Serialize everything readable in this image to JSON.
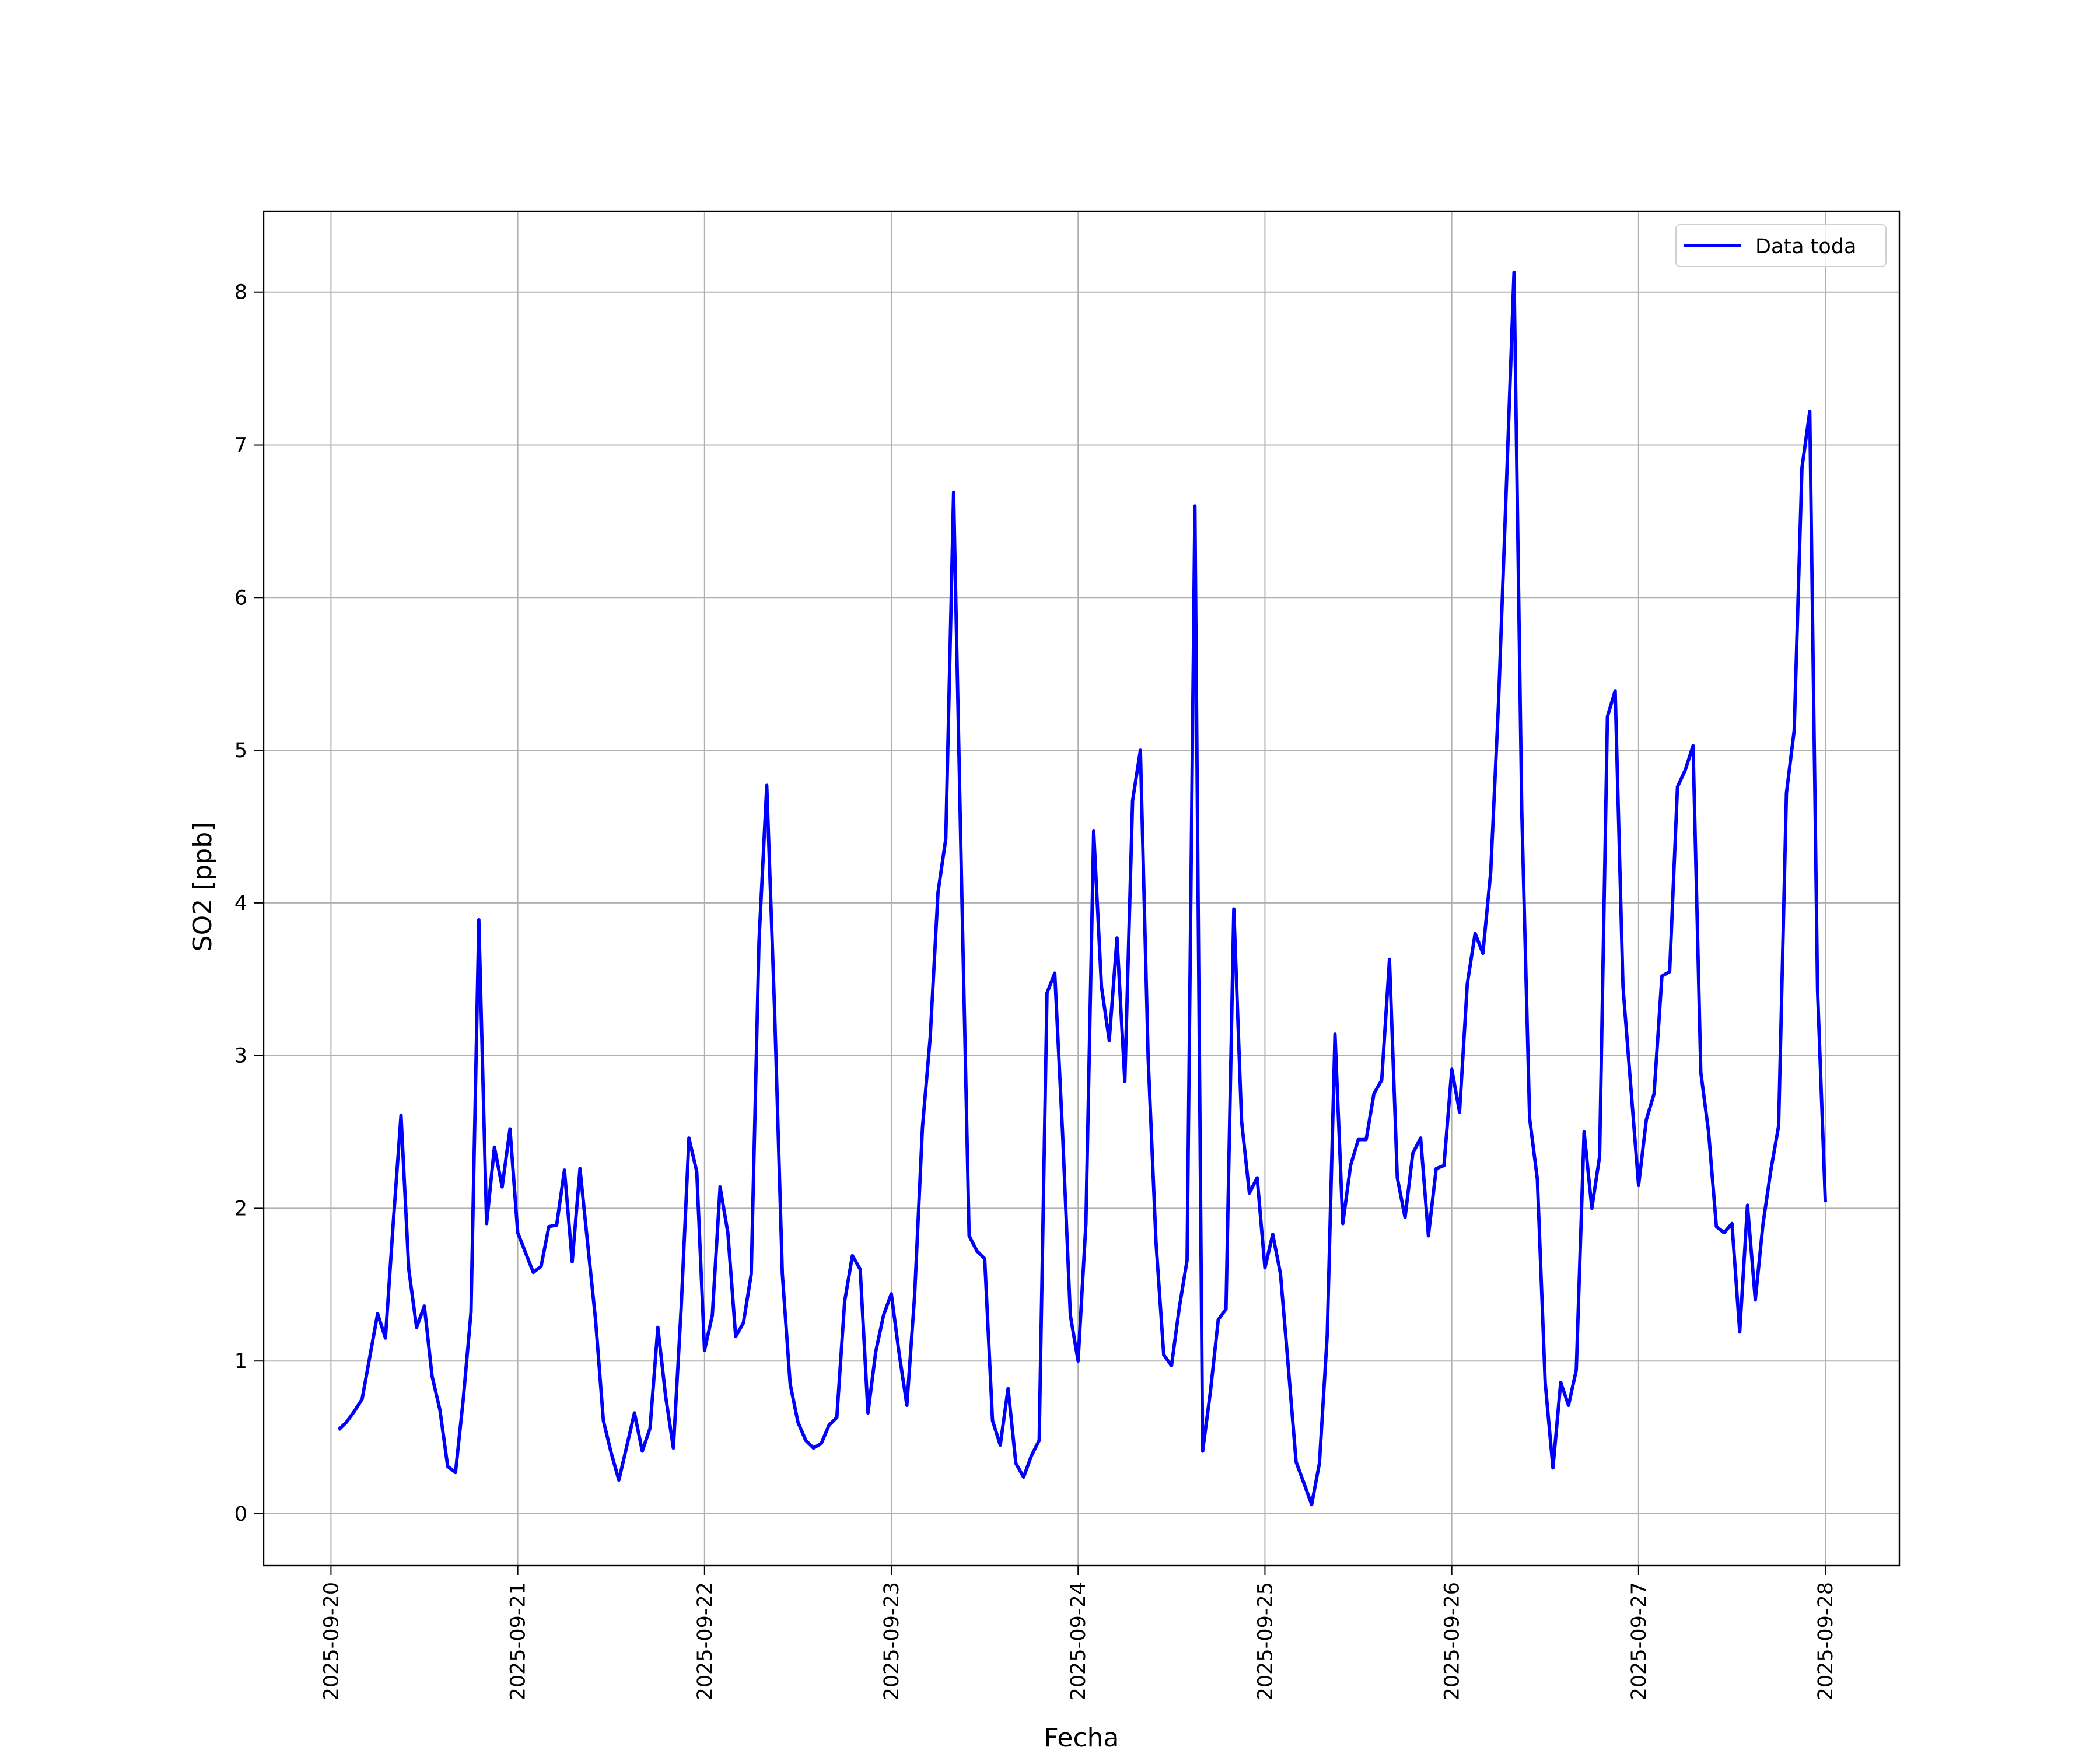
{
  "chart_data": {
    "type": "line",
    "xlabel": "Fecha",
    "ylabel": "SO2 [ppb]",
    "categories": [
      "2025-09-20",
      null,
      null,
      null,
      null,
      null,
      null,
      null,
      null,
      null,
      null,
      null,
      null,
      null,
      null,
      null,
      null,
      null,
      null,
      null,
      null,
      null,
      null,
      null,
      "2025-09-21",
      null,
      null,
      null,
      null,
      null,
      null,
      null,
      null,
      null,
      null,
      null,
      null,
      null,
      null,
      null,
      null,
      null,
      null,
      null,
      null,
      null,
      null,
      null,
      "2025-09-22",
      null,
      null,
      null,
      null,
      null,
      null,
      null,
      null,
      null,
      null,
      null,
      null,
      null,
      null,
      null,
      null,
      null,
      null,
      null,
      null,
      null,
      null,
      null,
      "2025-09-23",
      null,
      null,
      null,
      null,
      null,
      null,
      null,
      null,
      null,
      null,
      null,
      null,
      null,
      null,
      null,
      null,
      null,
      null,
      null,
      null,
      null,
      null,
      null,
      "2025-09-24",
      null,
      null,
      null,
      null,
      null,
      null,
      null,
      null,
      null,
      null,
      null,
      null,
      null,
      null,
      null,
      null,
      null,
      null,
      null,
      null,
      null,
      null,
      null,
      "2025-09-25",
      null,
      null,
      null,
      null,
      null,
      null,
      null,
      null,
      null,
      null,
      null,
      null,
      null,
      null,
      null,
      null,
      null,
      null,
      null,
      null,
      null,
      null,
      null,
      "2025-09-26",
      null,
      null,
      null,
      null,
      null,
      null,
      null,
      null,
      null,
      null,
      null,
      null,
      null,
      null,
      null,
      null,
      null,
      null,
      null,
      null,
      null,
      null,
      null,
      "2025-09-27",
      null,
      null,
      null,
      null,
      null,
      null,
      null,
      null,
      null,
      null,
      null,
      null,
      null,
      null,
      null,
      null,
      null,
      null,
      null,
      null,
      null,
      null,
      null,
      "2025-09-28"
    ],
    "series": [
      {
        "name": "Data toda",
        "color": "#0000ff",
        "values": [
          null,
          0.55,
          0.6,
          0.67,
          0.75,
          1.03,
          1.31,
          1.15,
          1.9,
          2.61,
          1.6,
          1.22,
          1.36,
          0.9,
          0.68,
          0.31,
          0.27,
          0.75,
          1.32,
          3.89,
          1.9,
          2.4,
          2.14,
          2.52,
          1.84,
          1.71,
          1.58,
          1.62,
          1.88,
          1.89,
          2.25,
          1.65,
          2.26,
          1.76,
          1.27,
          0.61,
          0.4,
          0.22,
          0.44,
          0.66,
          0.41,
          0.56,
          1.22,
          0.77,
          0.43,
          1.35,
          2.46,
          2.24,
          1.07,
          1.3,
          2.14,
          1.84,
          1.16,
          1.25,
          1.57,
          3.75,
          4.77,
          3.3,
          1.57,
          0.85,
          0.6,
          0.48,
          0.43,
          0.46,
          0.58,
          0.63,
          1.39,
          1.69,
          1.6,
          0.66,
          1.06,
          1.3,
          1.44,
          1.05,
          0.71,
          1.43,
          2.53,
          3.12,
          4.07,
          4.42,
          6.69,
          4.2,
          1.82,
          1.72,
          1.67,
          0.61,
          0.45,
          0.82,
          0.33,
          0.24,
          0.38,
          0.48,
          3.41,
          3.54,
          2.5,
          1.3,
          1.0,
          1.9,
          4.47,
          3.45,
          3.1,
          3.77,
          2.83,
          4.67,
          5.0,
          2.98,
          1.78,
          1.04,
          0.97,
          1.35,
          1.66,
          6.6,
          0.41,
          0.8,
          1.27,
          1.34,
          3.96,
          2.57,
          2.1,
          2.2,
          1.61,
          1.83,
          1.57,
          0.96,
          0.34,
          0.2,
          0.06,
          0.33,
          1.17,
          3.14,
          1.9,
          2.28,
          2.45,
          2.45,
          2.75,
          2.84,
          3.63,
          2.2,
          1.94,
          2.36,
          2.46,
          1.82,
          2.26,
          2.28,
          2.91,
          2.63,
          3.47,
          3.8,
          3.67,
          4.2,
          5.3,
          6.7,
          8.13,
          4.6,
          2.59,
          2.19,
          0.86,
          0.3,
          0.86,
          0.71,
          0.94,
          2.5,
          2.0,
          2.34,
          5.22,
          5.39,
          3.45,
          2.8,
          2.15,
          2.58,
          2.75,
          3.52,
          3.55,
          4.76,
          4.87,
          5.03,
          2.89,
          2.5,
          1.88,
          1.84,
          1.9,
          1.19,
          2.02,
          1.4,
          1.9,
          2.25,
          2.54,
          4.72,
          5.13,
          6.85,
          7.22,
          3.43,
          2.04
        ]
      }
    ],
    "ylim": [
      -0.34,
      8.53
    ],
    "yticks": [
      0,
      1,
      2,
      3,
      4,
      5,
      6,
      7,
      8
    ],
    "grid": true,
    "legend": "upper right"
  }
}
